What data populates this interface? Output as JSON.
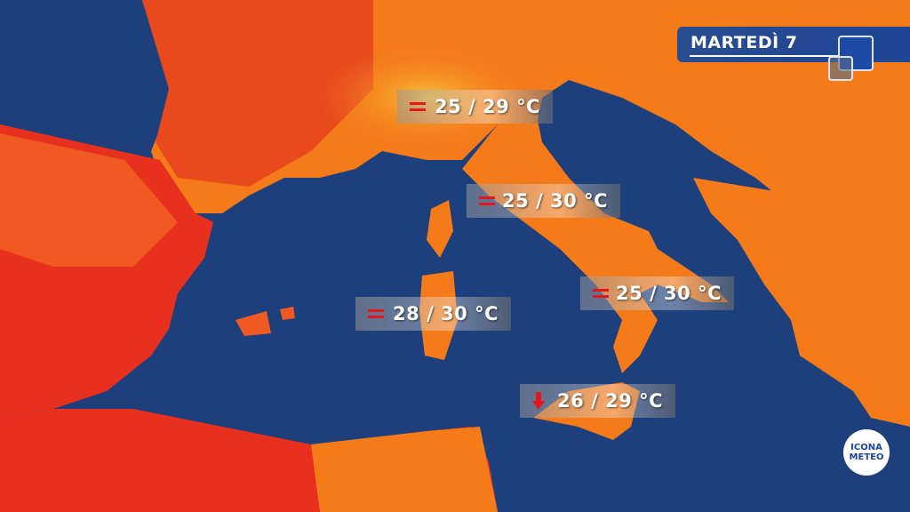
{
  "header": {
    "day": "MARTEDÌ 7"
  },
  "colors": {
    "sea": "#1d3f7c",
    "land_hot": "#e8301e",
    "land_warm": "#f47a1a",
    "land_mild": "#f9a825",
    "trend_icon": "#e8141c",
    "header_bg": "#1d4596"
  },
  "labels": [
    {
      "trend": "equal",
      "value": "25 / 29 °C"
    },
    {
      "trend": "equal",
      "value": "25 / 30 °C"
    },
    {
      "trend": "equal",
      "value": "25 / 30 °C"
    },
    {
      "trend": "equal",
      "value": "28 / 30 °C"
    },
    {
      "trend": "down",
      "value": "26 / 29 °C"
    }
  ],
  "logo": {
    "line1": "ICONA",
    "line2": "METEO"
  }
}
